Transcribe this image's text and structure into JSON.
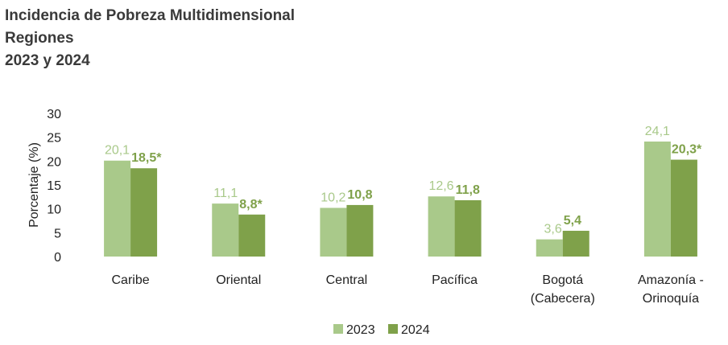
{
  "chart_data": {
    "type": "bar",
    "title": [
      "Incidencia de Pobreza Multidimensional",
      "Regiones",
      "2023 y 2024"
    ],
    "ylabel": "Porcentaje (%)",
    "ylim": [
      0,
      30
    ],
    "yticks": [
      "0",
      "5",
      "10",
      "15",
      "20",
      "25",
      "30"
    ],
    "categories": [
      [
        "Caribe"
      ],
      [
        "Oriental"
      ],
      [
        "Central"
      ],
      [
        "Pacífica"
      ],
      [
        "Bogotá",
        "(Cabecera)"
      ],
      [
        "Amazonía -",
        "Orinoquía"
      ]
    ],
    "series": [
      {
        "name": "2023",
        "color": "#a9c98a",
        "values": [
          20.1,
          11.1,
          10.2,
          12.6,
          3.6,
          24.1
        ],
        "labels": [
          "20,1",
          "11,1",
          "10,2",
          "12,6",
          "3,6",
          "24,1"
        ]
      },
      {
        "name": "2024",
        "color": "#7fa14a",
        "values": [
          18.5,
          8.8,
          10.8,
          11.8,
          5.4,
          20.3
        ],
        "labels": [
          "18,5*",
          "8,8*",
          "10,8",
          "11,8",
          "5,4",
          "20,3*"
        ]
      }
    ],
    "legend": "bottom",
    "grid": false
  }
}
